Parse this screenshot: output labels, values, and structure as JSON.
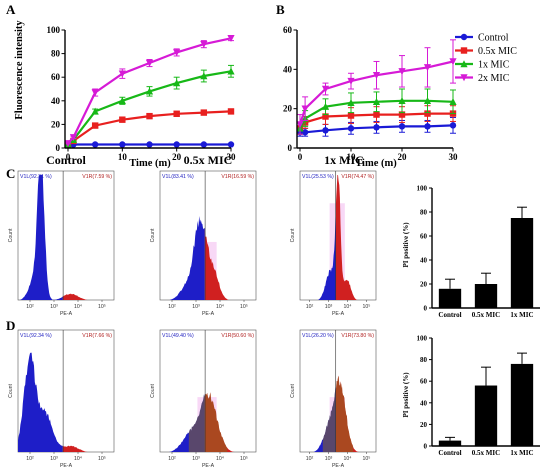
{
  "panels": {
    "A": "A",
    "B": "B",
    "C": "C",
    "D": "D"
  },
  "colors": {
    "Control": "#1a1ad6",
    "0.5x MIC": "#e8201f",
    "1x MIC": "#17b817",
    "2x MIC": "#d61ad6"
  },
  "chart_data": [
    {
      "id": "A",
      "type": "line",
      "xlabel": "Time (m)",
      "ylabel": "Fluorescence intensity",
      "xlim": [
        0,
        30
      ],
      "ylim": [
        0,
        100
      ],
      "xticks": [
        0,
        10,
        20,
        30
      ],
      "yticks": [
        0,
        20,
        40,
        60,
        80,
        100
      ],
      "x": [
        0,
        1,
        5,
        10,
        15,
        20,
        25,
        30
      ],
      "series": [
        {
          "name": "Control",
          "values": [
            3,
            3,
            3,
            3,
            3,
            3,
            3,
            3
          ],
          "err": [
            0.5,
            0.5,
            0.5,
            0.5,
            0.5,
            0.5,
            0.5,
            0.5
          ]
        },
        {
          "name": "0.5x MIC",
          "values": [
            3,
            6,
            19,
            24,
            27,
            29,
            30,
            31
          ],
          "err": [
            0.5,
            1,
            2,
            2,
            2,
            2,
            2,
            2
          ]
        },
        {
          "name": "1x MIC",
          "values": [
            3,
            7,
            31,
            40,
            48,
            55,
            61,
            65
          ],
          "err": [
            0.5,
            1,
            2,
            3,
            4,
            5,
            5,
            5
          ]
        },
        {
          "name": "2x MIC",
          "values": [
            4,
            9,
            47,
            63,
            72,
            81,
            88,
            93
          ],
          "err": [
            0.5,
            1,
            3,
            4,
            3,
            3,
            3,
            2
          ]
        }
      ]
    },
    {
      "id": "B",
      "type": "line",
      "xlabel": "Time (m)",
      "ylabel": "",
      "xlim": [
        0,
        30
      ],
      "ylim": [
        0,
        60
      ],
      "xticks": [
        0,
        10,
        20,
        30
      ],
      "yticks": [
        0,
        20,
        40,
        60
      ],
      "x": [
        0,
        1,
        5,
        10,
        15,
        20,
        25,
        30
      ],
      "legend": [
        "Control",
        "0.5x MIC",
        "1x MIC",
        "2x MIC"
      ],
      "series": [
        {
          "name": "Control",
          "values": [
            8,
            8,
            9,
            10,
            10.5,
            11,
            11,
            11.5
          ],
          "err": [
            2,
            2,
            3,
            3,
            3,
            3,
            3,
            4
          ]
        },
        {
          "name": "0.5x MIC",
          "values": [
            10,
            13,
            16,
            16.5,
            17,
            17,
            17.5,
            17.5
          ],
          "err": [
            3,
            3,
            4,
            4,
            4,
            4,
            4,
            4
          ]
        },
        {
          "name": "1x MIC",
          "values": [
            10,
            15,
            21,
            23,
            23.5,
            24,
            24,
            23.5
          ],
          "err": [
            3,
            4,
            4,
            5,
            5,
            6,
            6,
            6
          ]
        },
        {
          "name": "2x MIC",
          "values": [
            12,
            20,
            30,
            34,
            37,
            39,
            41,
            44
          ],
          "err": [
            5,
            6,
            3,
            4,
            7,
            8,
            10,
            11
          ]
        }
      ]
    },
    {
      "id": "C-bar",
      "type": "bar",
      "ylabel": "PI positive (%)",
      "ylim": [
        0,
        100
      ],
      "yticks": [
        0,
        20,
        40,
        60,
        80,
        100
      ],
      "categories": [
        "Control",
        "0.5x MIC",
        "1x MIC"
      ],
      "values": [
        16,
        20,
        75
      ],
      "err": [
        8,
        9,
        9
      ]
    },
    {
      "id": "D-bar",
      "type": "bar",
      "ylabel": "PI positive (%)",
      "ylim": [
        0,
        100
      ],
      "yticks": [
        0,
        20,
        40,
        60,
        80,
        100
      ],
      "categories": [
        "Control",
        "0.5x MIC",
        "1x MIC"
      ],
      "values": [
        5,
        56,
        76
      ],
      "err": [
        3,
        17,
        10
      ]
    }
  ],
  "flow": {
    "C": [
      {
        "title": "Control",
        "v1l": "V1L(92.31 %)",
        "v1r": "V1R(7.59 %)"
      },
      {
        "title": "0.5x MIC",
        "v1l": "V1L(83.41 %)",
        "v1r": "V1R(16.59 %)"
      },
      {
        "title": "1x MIC",
        "v1l": "V1L(25.53 %)",
        "v1r": "V1R(74.47 %)"
      }
    ],
    "D": [
      {
        "title": "",
        "v1l": "V1L(92.34 %)",
        "v1r": "V1R(7.66 %)"
      },
      {
        "title": "",
        "v1l": "V1L(49.40 %)",
        "v1r": "V1R(50.60 %)"
      },
      {
        "title": "",
        "v1l": "V1L(26.20 %)",
        "v1r": "V1R(73.80 %)"
      }
    ],
    "xlabel": "PE-A",
    "ylabel": "Count",
    "xticks": [
      "10²",
      "10³",
      "10⁴",
      "10⁵"
    ]
  }
}
